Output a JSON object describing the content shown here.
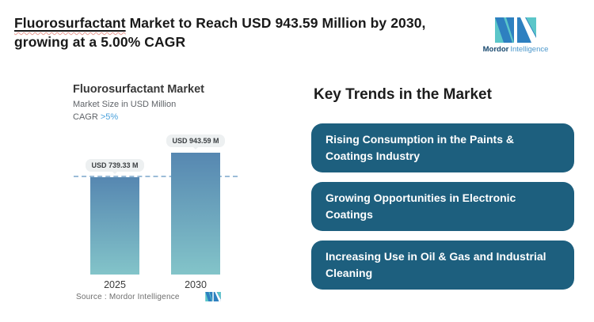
{
  "header": {
    "title_underlined_word": "Fluorosurfactant",
    "title_rest_line1": " Market to Reach USD 943.59 Million by 2030,",
    "title_line2": "growing at a 5.00% CAGR"
  },
  "brand": {
    "name_bold": "Mordor",
    "name_light": "Intelligence",
    "mark_teal": "#5bc6c9",
    "mark_blue": "#2e80c0"
  },
  "chart_data": {
    "type": "bar",
    "title": "Fluorosurfactant Market",
    "subtitle": "Market Size in USD Million",
    "cagr_label": "CAGR",
    "cagr_value": ">5%",
    "cagr_color": "#4aa1dc",
    "categories": [
      "2025",
      "2030"
    ],
    "values": [
      739.33,
      943.59
    ],
    "value_labels": [
      "USD 739.33 M",
      "USD 943.59 M"
    ],
    "unit": "USD Million",
    "ylim": [
      0,
      943.59
    ],
    "reference_line_value": 739.33,
    "grid": false,
    "legend": false,
    "source_label": "Source :  Mordor Intelligence",
    "bar_gradient_top": "#5687b1",
    "bar_gradient_bottom": "#83c4c9",
    "dashed_line_color": "#9bbcd8"
  },
  "trends": {
    "heading": "Key Trends in the Market",
    "box_color": "#1d5f7e",
    "items": [
      {
        "label": "Rising Consumption in the Paints & Coatings Industry"
      },
      {
        "label": "Growing Opportunities in Electronic Coatings"
      },
      {
        "label": "Increasing Use in Oil & Gas and Industrial Cleaning"
      }
    ]
  }
}
